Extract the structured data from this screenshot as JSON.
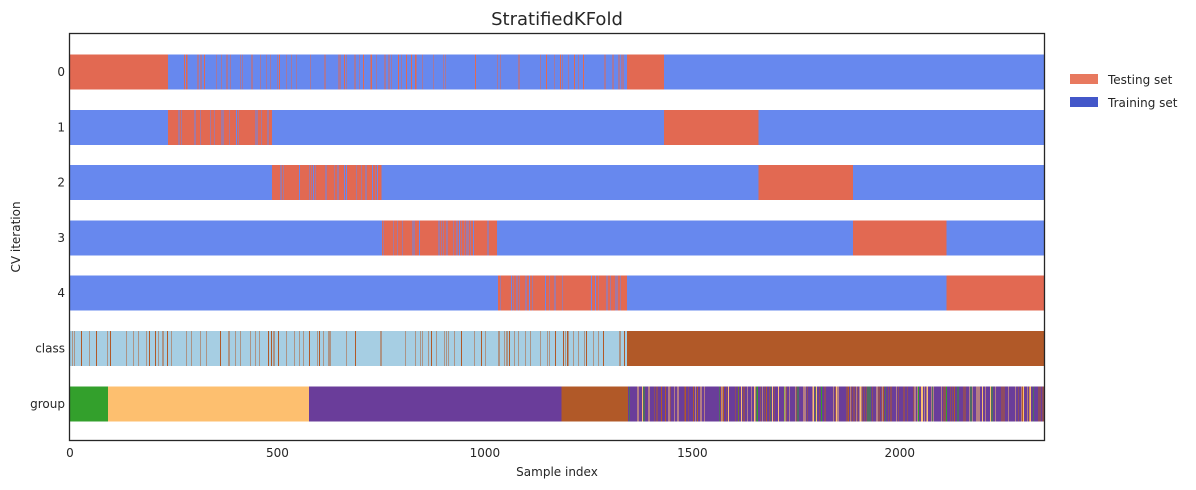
{
  "chart_data": {
    "type": "cv-split-bars",
    "title": "StratifiedKFold",
    "xlabel": "Sample index",
    "ylabel": "CV iteration",
    "xlim": [
      0,
      2350
    ],
    "xticks": [
      0,
      500,
      1000,
      1500,
      2000
    ],
    "row_labels": [
      "0",
      "1",
      "2",
      "3",
      "4",
      "class",
      "group"
    ],
    "grid": false,
    "legend": {
      "placement": "upper-right-outside",
      "items": [
        {
          "label": "Testing set",
          "color": "#E8795F"
        },
        {
          "label": "Training set",
          "color": "#4357C9"
        }
      ]
    },
    "colors": {
      "train_bar": "#6788EE",
      "test_bar": "#E26952",
      "class_0": "#A6CEE3",
      "class_1": "#B15928",
      "group_0": "#33A02C",
      "group_1": "#FDBF6F",
      "group_2": "#6A3D9A",
      "group_3": "#B15928"
    },
    "class_boundary": 1342,
    "folds": [
      {
        "iteration": 0,
        "test_ranges": [
          [
            0,
            236
          ],
          [
            1342,
            1432
          ]
        ],
        "mixed_range": [
          236,
          1342
        ]
      },
      {
        "iteration": 1,
        "test_ranges": [
          [
            236,
            487
          ],
          [
            1432,
            1659
          ]
        ],
        "mixed_range": [
          236,
          487
        ]
      },
      {
        "iteration": 2,
        "test_ranges": [
          [
            487,
            752
          ],
          [
            1659,
            1887
          ]
        ],
        "mixed_range": [
          487,
          752
        ]
      },
      {
        "iteration": 3,
        "test_ranges": [
          [
            752,
            1032
          ],
          [
            1887,
            2113
          ]
        ],
        "mixed_range": [
          752,
          1032
        ]
      },
      {
        "iteration": 4,
        "test_ranges": [
          [
            1032,
            1342
          ],
          [
            2113,
            2350
          ]
        ],
        "mixed_range": [
          1032,
          1342
        ]
      }
    ],
    "groups": [
      {
        "range": [
          0,
          92
        ],
        "group": 0
      },
      {
        "range": [
          92,
          576
        ],
        "group": 1
      },
      {
        "range": [
          576,
          1185
        ],
        "group": 2
      },
      {
        "range": [
          1185,
          1345
        ],
        "group": 3
      },
      {
        "range": [
          1345,
          2350
        ],
        "group": "mixed"
      }
    ]
  }
}
